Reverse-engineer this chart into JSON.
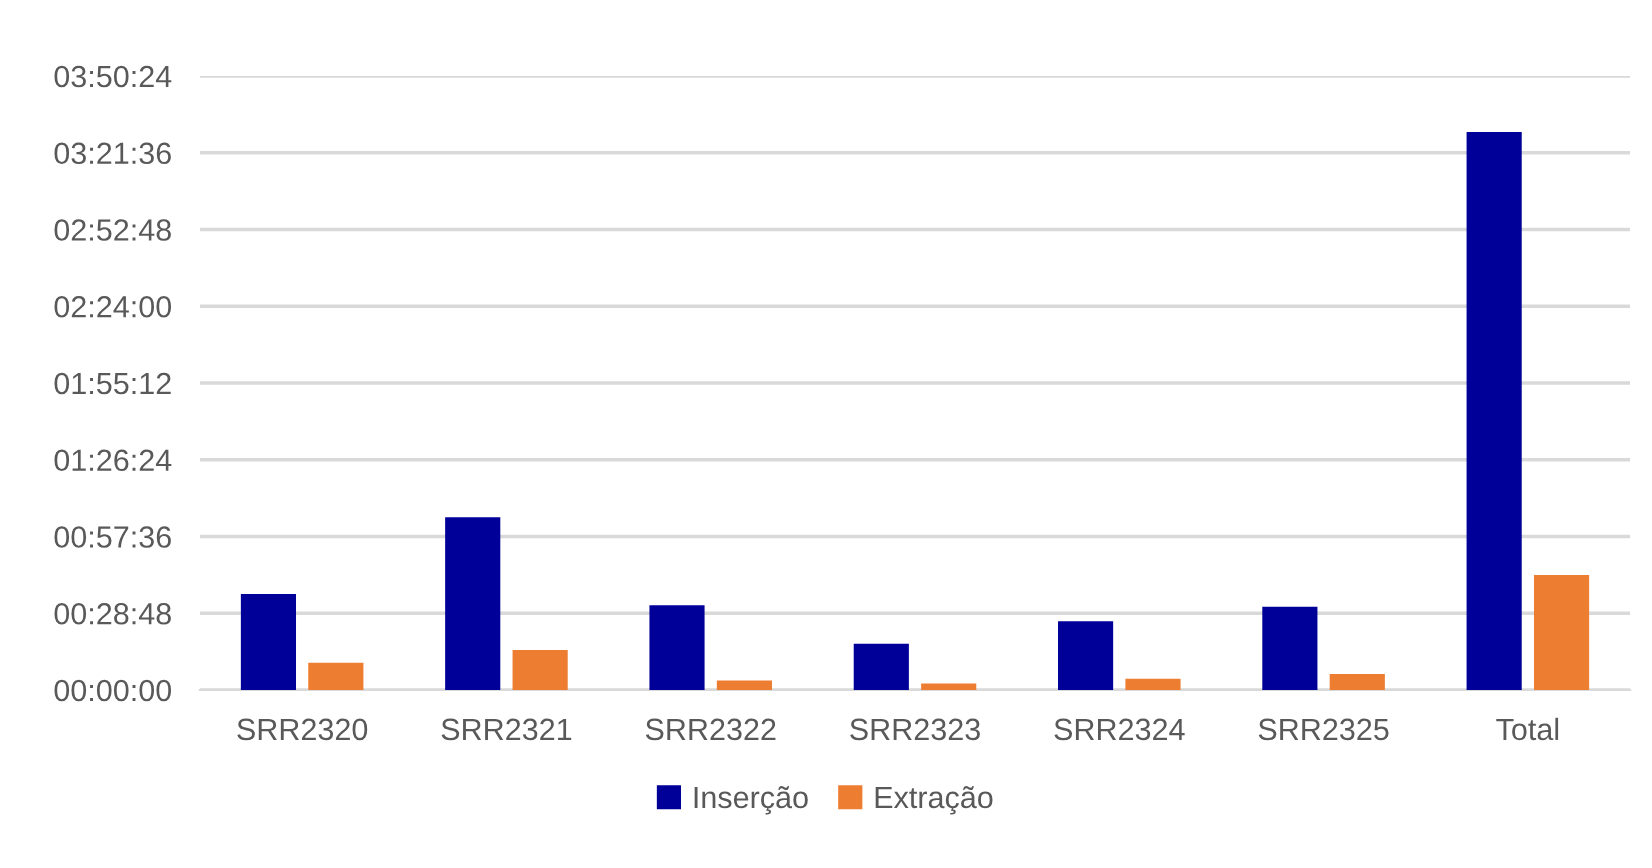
{
  "chart_data": {
    "type": "bar",
    "categories": [
      "SRR2320",
      "SRR2321",
      "SRR2322",
      "SRR2323",
      "SRR2324",
      "SRR2325",
      "Total"
    ],
    "series": [
      {
        "name": "Inserção",
        "color": "#000099",
        "values": [
          0.6,
          1.08,
          0.53,
          0.29,
          0.43,
          0.52,
          3.49
        ]
      },
      {
        "name": "Extração",
        "color": "#ed7d31",
        "values": [
          0.17,
          0.25,
          0.06,
          0.04,
          0.07,
          0.1,
          0.72
        ]
      }
    ],
    "ylim": [
      0,
      3.84
    ],
    "yticks": [
      {
        "value": 0,
        "label": "00:00:00"
      },
      {
        "value": 0.48,
        "label": "00:28:48"
      },
      {
        "value": 0.96,
        "label": "00:57:36"
      },
      {
        "value": 1.44,
        "label": "01:26:24"
      },
      {
        "value": 1.92,
        "label": "01:55:12"
      },
      {
        "value": 2.4,
        "label": "02:24:00"
      },
      {
        "value": 2.88,
        "label": "02:52:48"
      },
      {
        "value": 3.36,
        "label": "03:21:36"
      },
      {
        "value": 3.84,
        "label": "03:50:24"
      }
    ],
    "grid": "y",
    "legend": "bottom"
  }
}
